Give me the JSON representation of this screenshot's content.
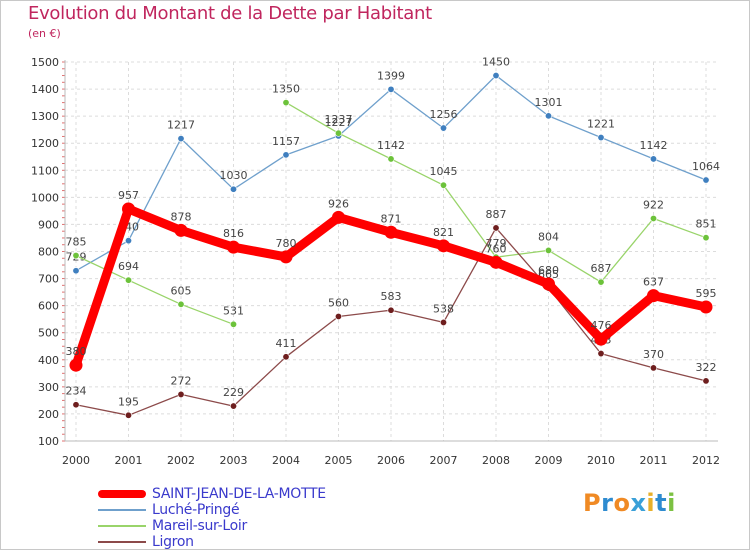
{
  "title": "Evolution du Montant de la Dette par Habitant",
  "subtitle": "(en €)",
  "logo_text": "Proxiti",
  "logo_colors": [
    "#f08a24",
    "#2e8bd0",
    "#f08a24",
    "#3aa0d8",
    "#e8b02a",
    "#2e8bd0",
    "#7cc142"
  ],
  "chart_data": {
    "type": "line",
    "x": [
      "2000",
      "2001",
      "2002",
      "2003",
      "2004",
      "2005",
      "2006",
      "2007",
      "2008",
      "2009",
      "2010",
      "2011",
      "2012"
    ],
    "ylim": [
      100,
      1500
    ],
    "yticks": [
      100,
      200,
      300,
      400,
      500,
      600,
      700,
      800,
      900,
      1000,
      1100,
      1200,
      1300,
      1400,
      1500
    ],
    "grid": true,
    "legend_position": "bottom-left",
    "series": [
      {
        "name": "Luché-Pringé",
        "color": "#6fa0cc",
        "point_color": "#3f7fbf",
        "values": [
          729,
          840,
          1217,
          1030,
          1157,
          1227,
          1399,
          1256,
          1450,
          1301,
          1221,
          1142,
          1064
        ],
        "labels": [
          "729",
          "840",
          "1217",
          "1030",
          "1157",
          "1227",
          "1399",
          "1256",
          "1450",
          "1301",
          "1221",
          "1142",
          "1064"
        ]
      },
      {
        "name": "Mareil-sur-Loir",
        "color": "#99d46a",
        "point_color": "#6cc23a",
        "values": [
          785,
          694,
          605,
          531,
          1350,
          1237,
          1142,
          1045,
          779,
          804,
          687,
          922,
          851
        ],
        "labels": [
          "785",
          "694",
          "605",
          "531",
          "1350",
          "1237",
          "1142",
          "1045",
          "779",
          "804",
          "687",
          "922",
          "851"
        ],
        "breaks_after": [
          3
        ]
      },
      {
        "name": "Ligron",
        "color": "#8c4a4a",
        "point_color": "#6e1e1e",
        "values": [
          234,
          195,
          272,
          229,
          411,
          560,
          583,
          538,
          887,
          665,
          423,
          370,
          322
        ],
        "labels": [
          "234",
          "195",
          "272",
          "229",
          "411",
          "560",
          "583",
          "538",
          "887",
          "665",
          "423",
          "370",
          "322"
        ]
      },
      {
        "name": "SAINT-JEAN-DE-LA-MOTTE",
        "color": "#ff0000",
        "point_color": "#ff0000",
        "thick": true,
        "values": [
          380,
          957,
          878,
          816,
          780,
          926,
          871,
          821,
          760,
          680,
          476,
          637,
          595
        ],
        "labels": [
          "380",
          "957",
          "878",
          "816",
          "780",
          "926",
          "871",
          "821",
          "760",
          "680",
          "476",
          "637",
          "595"
        ]
      }
    ],
    "legend": [
      "SAINT-JEAN-DE-LA-MOTTE",
      "Luché-Pringé",
      "Mareil-sur-Loir",
      "Ligron"
    ]
  }
}
